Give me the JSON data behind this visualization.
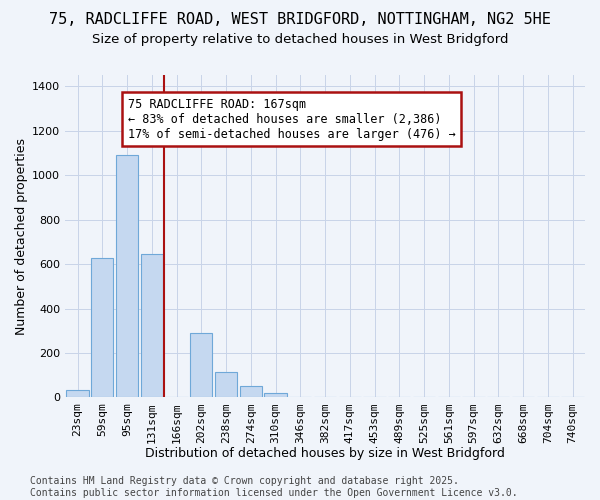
{
  "title_line1": "75, RADCLIFFE ROAD, WEST BRIDGFORD, NOTTINGHAM, NG2 5HE",
  "title_line2": "Size of property relative to detached houses in West Bridgford",
  "xlabel": "Distribution of detached houses by size in West Bridgford",
  "ylabel": "Number of detached properties",
  "categories": [
    "23sqm",
    "59sqm",
    "95sqm",
    "131sqm",
    "166sqm",
    "202sqm",
    "238sqm",
    "274sqm",
    "310sqm",
    "346sqm",
    "382sqm",
    "417sqm",
    "453sqm",
    "489sqm",
    "525sqm",
    "561sqm",
    "597sqm",
    "632sqm",
    "668sqm",
    "704sqm",
    "740sqm"
  ],
  "values": [
    35,
    625,
    1090,
    645,
    0,
    290,
    115,
    50,
    20,
    0,
    0,
    0,
    0,
    0,
    0,
    0,
    0,
    0,
    0,
    0,
    0
  ],
  "bar_color": "#c5d8f0",
  "bar_edge_color": "#6fa8d8",
  "grid_color": "#c8d4e8",
  "bg_color": "#f0f4fa",
  "vline_x": 3.5,
  "vline_color": "#aa1111",
  "annotation_text": "75 RADCLIFFE ROAD: 167sqm\n← 83% of detached houses are smaller (2,386)\n17% of semi-detached houses are larger (476) →",
  "annotation_box_color": "#aa1111",
  "ylim": [
    0,
    1450
  ],
  "yticks": [
    0,
    200,
    400,
    600,
    800,
    1000,
    1200,
    1400
  ],
  "footer_text": "Contains HM Land Registry data © Crown copyright and database right 2025.\nContains public sector information licensed under the Open Government Licence v3.0.",
  "title_fontsize": 11,
  "subtitle_fontsize": 9.5,
  "axis_label_fontsize": 9,
  "tick_fontsize": 8,
  "footer_fontsize": 7
}
